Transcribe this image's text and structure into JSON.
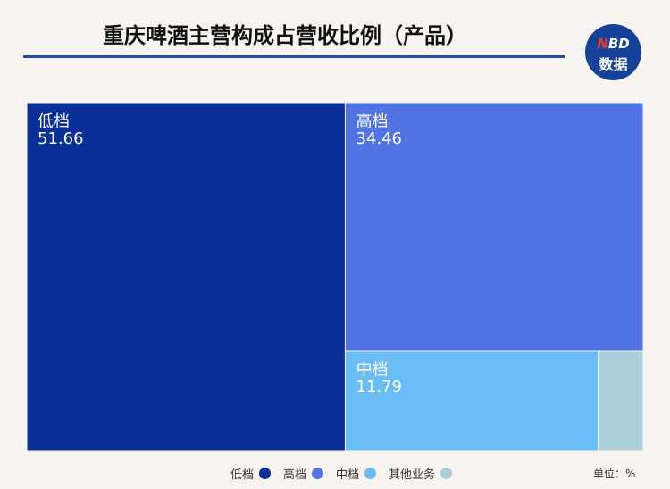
{
  "title": "重庆啤酒主营构成占营收比例（产品）",
  "logo": {
    "line1_a": "N",
    "line1_b": "BD",
    "line2": "数据"
  },
  "unit_label": "单位：%",
  "colors": {
    "低档": "#0a2f96",
    "高档": "#5273e4",
    "中档": "#6abcf4",
    "其他业务": "#a9d0db"
  },
  "chart_data": {
    "type": "treemap",
    "items": [
      {
        "name": "低档",
        "value": 51.66
      },
      {
        "name": "高档",
        "value": 34.46
      },
      {
        "name": "中档",
        "value": 11.79
      },
      {
        "name": "其他业务",
        "value": 2.09
      }
    ],
    "legend_position": "bottom"
  },
  "legend": [
    {
      "label": "低档"
    },
    {
      "label": "高档"
    },
    {
      "label": "中档"
    },
    {
      "label": "其他业务"
    }
  ]
}
